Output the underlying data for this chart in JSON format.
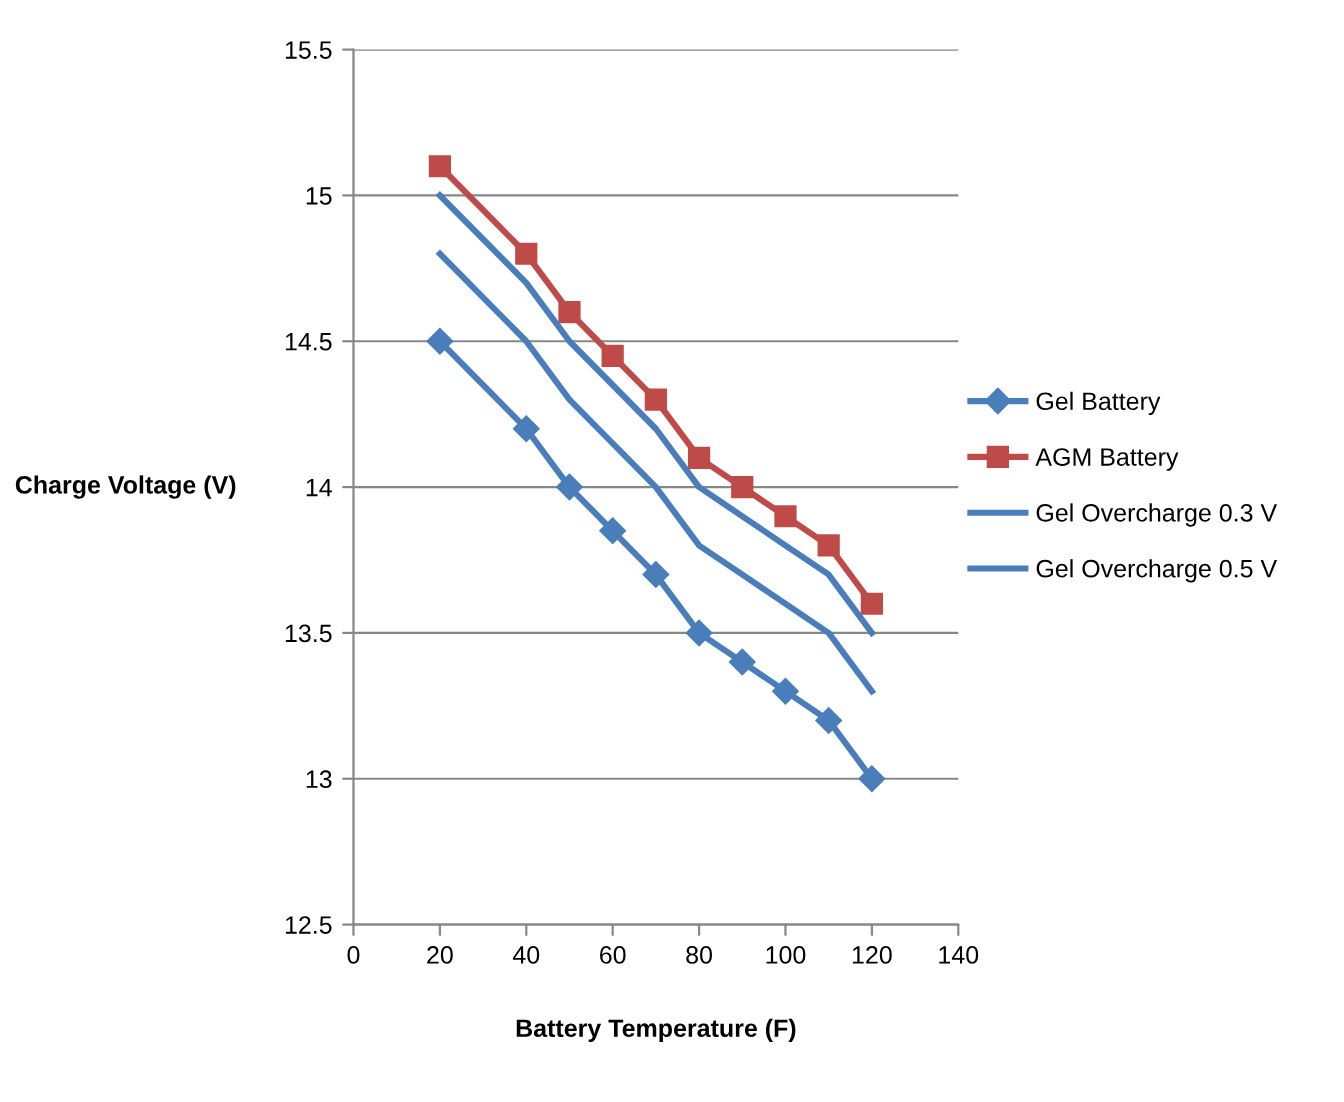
{
  "chart_data": {
    "type": "line",
    "xlabel": "Battery Temperature (F)",
    "ylabel": "Charge Voltage (V)",
    "x": [
      20,
      40,
      50,
      60,
      70,
      80,
      90,
      100,
      110,
      120
    ],
    "series": [
      {
        "name": "Gel Battery",
        "color": "#4a7ebb",
        "marker": "diamond",
        "values": [
          14.5,
          14.2,
          14.0,
          13.85,
          13.7,
          13.5,
          13.4,
          13.3,
          13.2,
          13.0
        ]
      },
      {
        "name": "AGM Battery",
        "color": "#be4b48",
        "marker": "square",
        "values": [
          15.1,
          14.8,
          14.6,
          14.45,
          14.3,
          14.1,
          14.0,
          13.9,
          13.8,
          13.6
        ]
      },
      {
        "name": "Gel Overcharge 0.3 V",
        "color": "#4a7ebb",
        "marker": "none",
        "values": [
          14.8,
          14.5,
          14.3,
          14.15,
          14.0,
          13.8,
          13.7,
          13.6,
          13.5,
          13.3
        ]
      },
      {
        "name": "Gel Overcharge 0.5 V",
        "color": "#4a7ebb",
        "marker": "none",
        "values": [
          15.0,
          14.7,
          14.5,
          14.35,
          14.2,
          14.0,
          13.9,
          13.8,
          13.7,
          13.5
        ]
      }
    ],
    "xlim": [
      0,
      140
    ],
    "xticks": [
      0,
      20,
      40,
      60,
      80,
      100,
      120,
      140
    ],
    "ylim": [
      12.5,
      15.5
    ],
    "yticks": [
      12.5,
      13,
      13.5,
      14,
      14.5,
      15,
      15.5
    ],
    "grid": "y",
    "legend": "right",
    "line_style": "solid"
  }
}
